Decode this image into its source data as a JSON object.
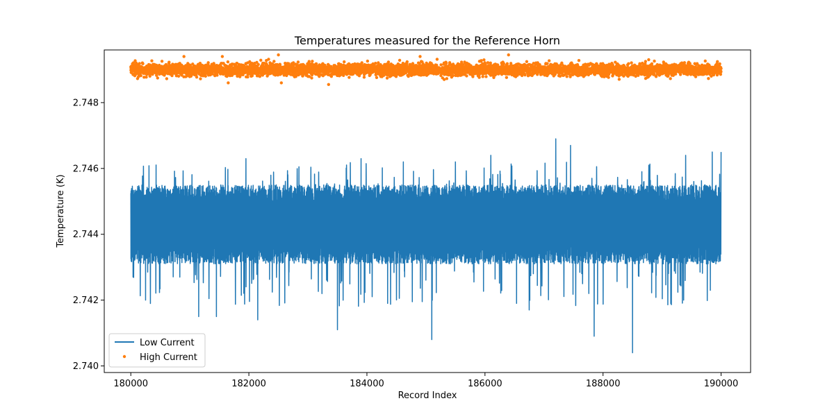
{
  "chart_data": {
    "type": "line",
    "title": "Temperatures measured for the Reference Horn",
    "xlabel": "Record Index",
    "ylabel": "Temperature (K)",
    "xlim": [
      179550,
      190500
    ],
    "ylim": [
      2.7398,
      2.7496
    ],
    "xticks": [
      180000,
      182000,
      184000,
      186000,
      188000,
      190000
    ],
    "xtick_labels": [
      "180000",
      "182000",
      "184000",
      "186000",
      "188000",
      "190000"
    ],
    "yticks": [
      2.74,
      2.742,
      2.744,
      2.746,
      2.748
    ],
    "ytick_labels": [
      "2.740",
      "2.742",
      "2.744",
      "2.746",
      "2.748"
    ],
    "grid": false,
    "legend_position": "lower-left",
    "series": [
      {
        "name": "Low Current",
        "style": "line",
        "color": "#1f77b4",
        "x_range": [
          180000,
          190000
        ],
        "num_points": 5000,
        "baseline_band": [
          2.7429,
          2.7453
        ],
        "mean": 2.7443,
        "spike_max": [
          2.7469,
          2.7467,
          2.7465,
          2.7465,
          2.7465,
          2.7464,
          2.7464,
          2.7463,
          2.7463,
          2.7462
        ],
        "spike_max_x": [
          187200,
          187450,
          180250,
          190000,
          189850,
          186100,
          189400,
          181950,
          183900,
          185500
        ],
        "spike_min": [
          2.7404,
          2.7408,
          2.7409,
          2.7411,
          2.7414,
          2.7415,
          2.7415,
          2.7417,
          2.7419,
          2.742
        ],
        "spike_min_x": [
          188500,
          185100,
          187850,
          183500,
          182150,
          181150,
          181450,
          186750,
          184350,
          180250
        ]
      },
      {
        "name": "High Current",
        "style": "scatter",
        "color": "#ff7f0e",
        "x_range": [
          180000,
          190000
        ],
        "num_points": 5000,
        "mean": 2.749,
        "band": [
          2.7488,
          2.7492
        ],
        "extremes_high": [
          2.74945,
          2.74945,
          2.7494,
          2.7494,
          2.7494
        ],
        "extremes_high_x": [
          186400,
          182500,
          180900,
          181550,
          184900
        ],
        "extremes_low": [
          2.74855,
          2.7486,
          2.7486
        ],
        "extremes_low_x": [
          183350,
          181650,
          182550
        ]
      }
    ]
  }
}
